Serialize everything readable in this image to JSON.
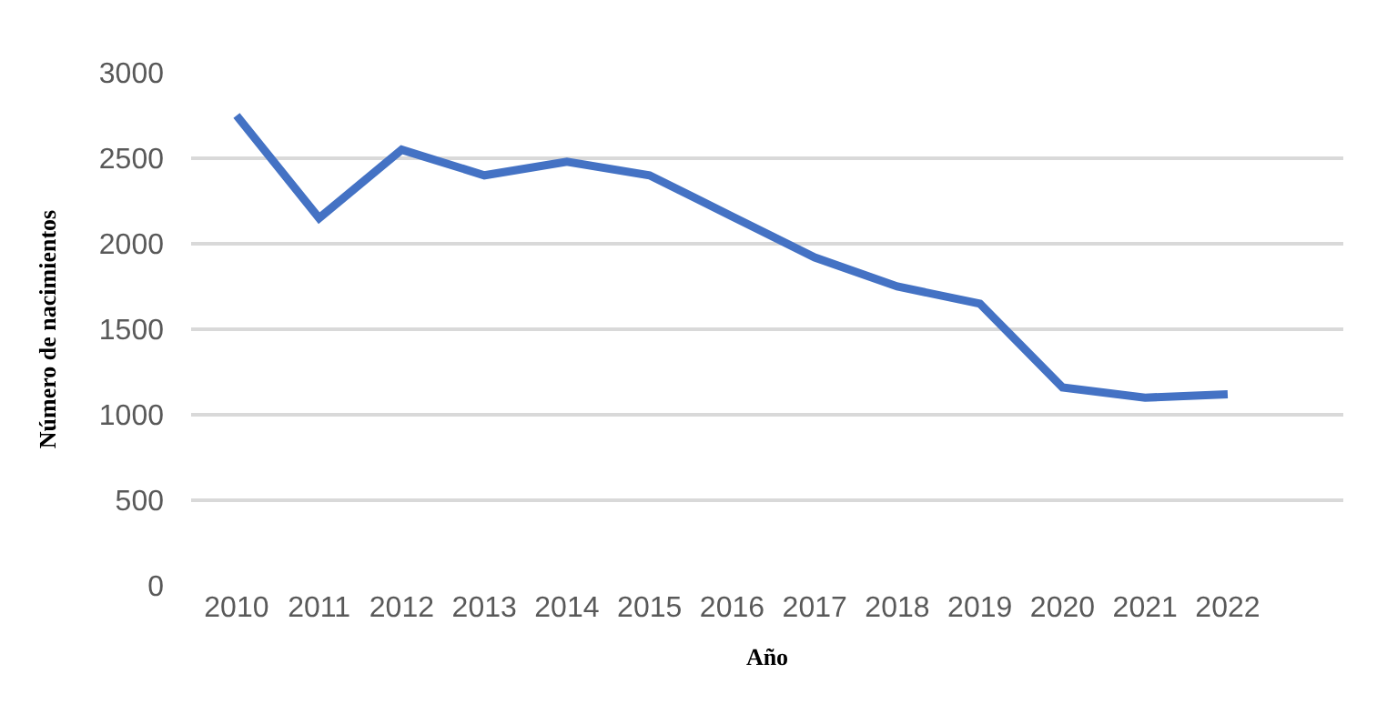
{
  "chart_data": {
    "type": "line",
    "xlabel": "Año",
    "ylabel": "Número de nacimientos",
    "categories": [
      "2010",
      "2011",
      "2012",
      "2013",
      "2014",
      "2015",
      "2016",
      "2017",
      "2018",
      "2019",
      "2020",
      "2021",
      "2022"
    ],
    "series": [
      {
        "color": "#4472c4",
        "values": [
          2750,
          2150,
          2550,
          2400,
          2480,
          2400,
          2160,
          1920,
          1750,
          1650,
          1160,
          1100,
          1120
        ]
      }
    ],
    "ylim": [
      0,
      3000
    ],
    "yticks": [
      0,
      500,
      1000,
      1500,
      2000,
      2500,
      3000
    ],
    "grid": "y",
    "marker": "none",
    "line_style": "solid"
  }
}
